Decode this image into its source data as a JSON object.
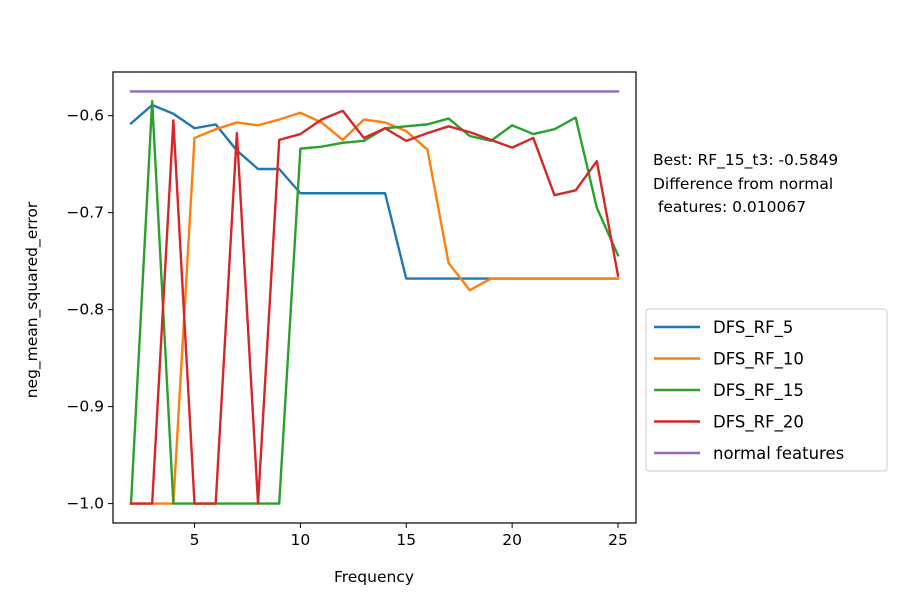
{
  "chart_data": {
    "type": "line",
    "title": "",
    "xlabel": "Frequency",
    "ylabel": "neg_mean_squared_error",
    "xlim": [
      1.15,
      25.85
    ],
    "ylim": [
      -1.02,
      -0.555
    ],
    "xticks": [
      5,
      10,
      15,
      20,
      25
    ],
    "xtick_labels": [
      "5",
      "10",
      "15",
      "20",
      "25"
    ],
    "yticks": [
      -1.0,
      -0.9,
      -0.8,
      -0.7,
      -0.6
    ],
    "ytick_labels": [
      "−1.0",
      "−0.9",
      "−0.8",
      "−0.7",
      "−0.6"
    ],
    "grid": false,
    "legend_position": "right-lower, outside plot",
    "annotation": [
      "Best: RF_15_t3: -0.5849",
      "Difference from normal",
      " features: 0.010067"
    ],
    "x": [
      2,
      3,
      4,
      5,
      6,
      7,
      8,
      9,
      10,
      11,
      12,
      13,
      14,
      15,
      16,
      17,
      18,
      19,
      20,
      21,
      22,
      23,
      24,
      25
    ],
    "series": [
      {
        "name": "DFS_RF_5",
        "color": "#1f77b4",
        "values": [
          -0.608,
          -0.589,
          -0.598,
          -0.613,
          -0.609,
          -0.636,
          -0.655,
          -0.655,
          -0.68,
          -0.68,
          -0.68,
          -0.68,
          -0.68,
          -0.768,
          -0.768,
          -0.768,
          -0.768,
          -0.768,
          -0.768,
          -0.768,
          -0.768,
          -0.768,
          -0.768,
          -0.768
        ]
      },
      {
        "name": "DFS_RF_10",
        "color": "#ff7f0e",
        "values": [
          -1.0,
          -1.0,
          -1.0,
          -0.623,
          -0.614,
          -0.607,
          -0.61,
          -0.604,
          -0.597,
          -0.607,
          -0.625,
          -0.604,
          -0.607,
          -0.616,
          -0.635,
          -0.752,
          -0.78,
          -0.768,
          -0.768,
          -0.768,
          -0.768,
          -0.768,
          -0.768,
          -0.768
        ]
      },
      {
        "name": "DFS_RF_15",
        "color": "#2ca02c",
        "values": [
          -1.0,
          -0.585,
          -1.0,
          -1.0,
          -1.0,
          -1.0,
          -1.0,
          -1.0,
          -0.634,
          -0.632,
          -0.628,
          -0.626,
          -0.613,
          -0.611,
          -0.609,
          -0.603,
          -0.621,
          -0.626,
          -0.61,
          -0.619,
          -0.614,
          -0.602,
          -0.695,
          -0.744
        ]
      },
      {
        "name": "DFS_RF_20",
        "color": "#d62728",
        "values": [
          -1.0,
          -1.0,
          -0.605,
          -1.0,
          -1.0,
          -0.618,
          -1.0,
          -0.625,
          -0.619,
          -0.604,
          -0.595,
          -0.623,
          -0.613,
          -0.626,
          -0.618,
          -0.611,
          -0.617,
          -0.625,
          -0.633,
          -0.623,
          -0.682,
          -0.677,
          -0.647,
          -0.765
        ]
      },
      {
        "name": "normal features",
        "color": "#9467bd",
        "values": [
          -0.575,
          -0.575,
          -0.575,
          -0.575,
          -0.575,
          -0.575,
          -0.575,
          -0.575,
          -0.575,
          -0.575,
          -0.575,
          -0.575,
          -0.575,
          -0.575,
          -0.575,
          -0.575,
          -0.575,
          -0.575,
          -0.575,
          -0.575,
          -0.575,
          -0.575,
          -0.575,
          -0.575
        ]
      }
    ]
  }
}
